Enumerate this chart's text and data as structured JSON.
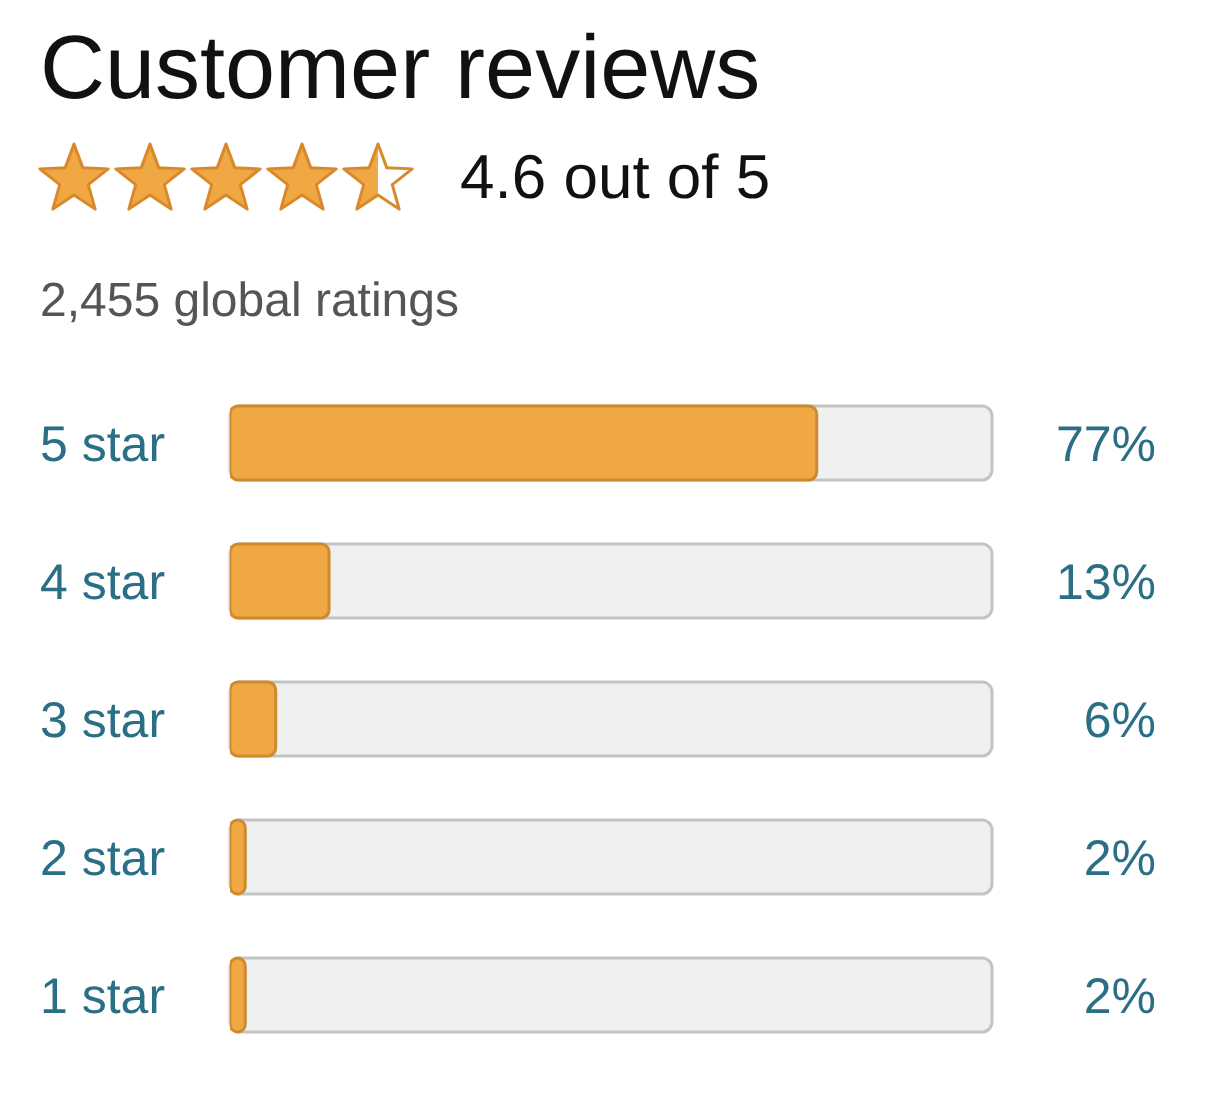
{
  "chart_data": {
    "type": "bar",
    "orientation": "horizontal",
    "title": "Customer reviews",
    "subtitle": "4.6 out of 5",
    "annotations": [
      "2,455 global ratings"
    ],
    "categories": [
      "5 star",
      "4 star",
      "3 star",
      "2 star",
      "1 star"
    ],
    "values": [
      77,
      13,
      6,
      2,
      2
    ],
    "value_labels": [
      "77%",
      "13%",
      "6%",
      "2%",
      "2%"
    ],
    "color": "#f0a844",
    "xlim": [
      0,
      100
    ],
    "tick_labels": "y",
    "grid": false,
    "legend": false
  }
}
